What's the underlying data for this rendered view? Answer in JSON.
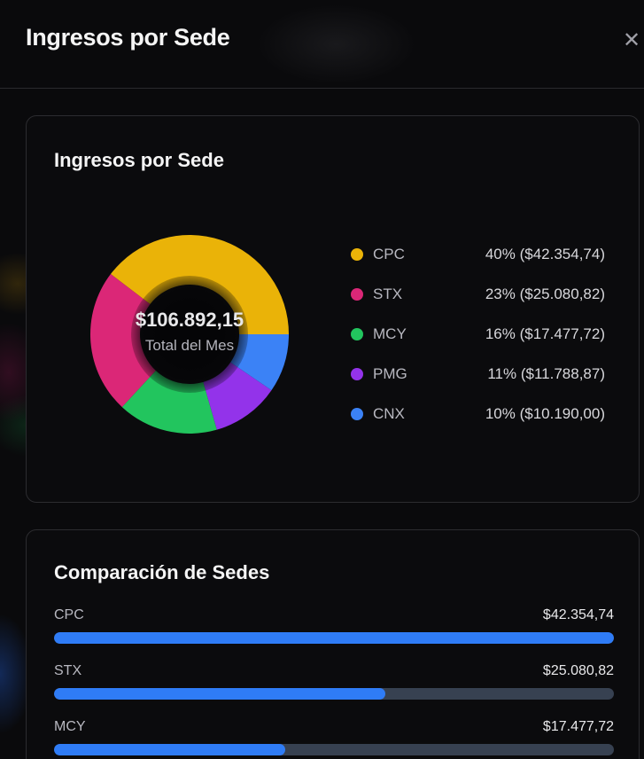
{
  "header": {
    "title": "Ingresos por Sede",
    "close_icon": "close-icon"
  },
  "donut_card": {
    "title": "Ingresos por Sede",
    "center_total": "$106.892,15",
    "center_label": "Total del Mes"
  },
  "comparison_card": {
    "title": "Comparación de Sedes",
    "bar_color": "#2f7cf6",
    "track_color": "#374151"
  },
  "legend": [
    {
      "label": "CPC",
      "value": "40% ($42.354,74)",
      "color": "#eab308"
    },
    {
      "label": "STX",
      "value": "23% ($25.080,82)",
      "color": "#db2777"
    },
    {
      "label": "MCY",
      "value": "16% ($17.477,72)",
      "color": "#22c55e"
    },
    {
      "label": "PMG",
      "value": "11% ($11.788,87)",
      "color": "#9333ea"
    },
    {
      "label": "CNX",
      "value": "10% ($10.190,00)",
      "color": "#3b82f6"
    }
  ],
  "bars": [
    {
      "label": "CPC",
      "value": "$42.354,74",
      "amount": 42354.74
    },
    {
      "label": "STX",
      "value": "$25.080,82",
      "amount": 25080.82
    },
    {
      "label": "MCY",
      "value": "$17.477,72",
      "amount": 17477.72
    }
  ],
  "chart_data": [
    {
      "type": "pie",
      "title": "Ingresos por Sede",
      "subtype": "donut",
      "center_text": "$106.892,15",
      "center_subtext": "Total del Mes",
      "categories": [
        "CPC",
        "STX",
        "MCY",
        "PMG",
        "CNX"
      ],
      "values": [
        42354.74,
        25080.82,
        17477.72,
        11788.87,
        10190.0
      ],
      "percentages": [
        40,
        23,
        16,
        11,
        10
      ],
      "colors": [
        "#eab308",
        "#db2777",
        "#22c55e",
        "#9333ea",
        "#3b82f6"
      ],
      "total": 106892.15,
      "legend_position": "right"
    },
    {
      "type": "bar",
      "orientation": "horizontal",
      "title": "Comparación de Sedes",
      "categories": [
        "CPC",
        "STX",
        "MCY"
      ],
      "values": [
        42354.74,
        25080.82,
        17477.72
      ],
      "xlim": [
        0,
        42354.74
      ],
      "grid": false
    }
  ]
}
